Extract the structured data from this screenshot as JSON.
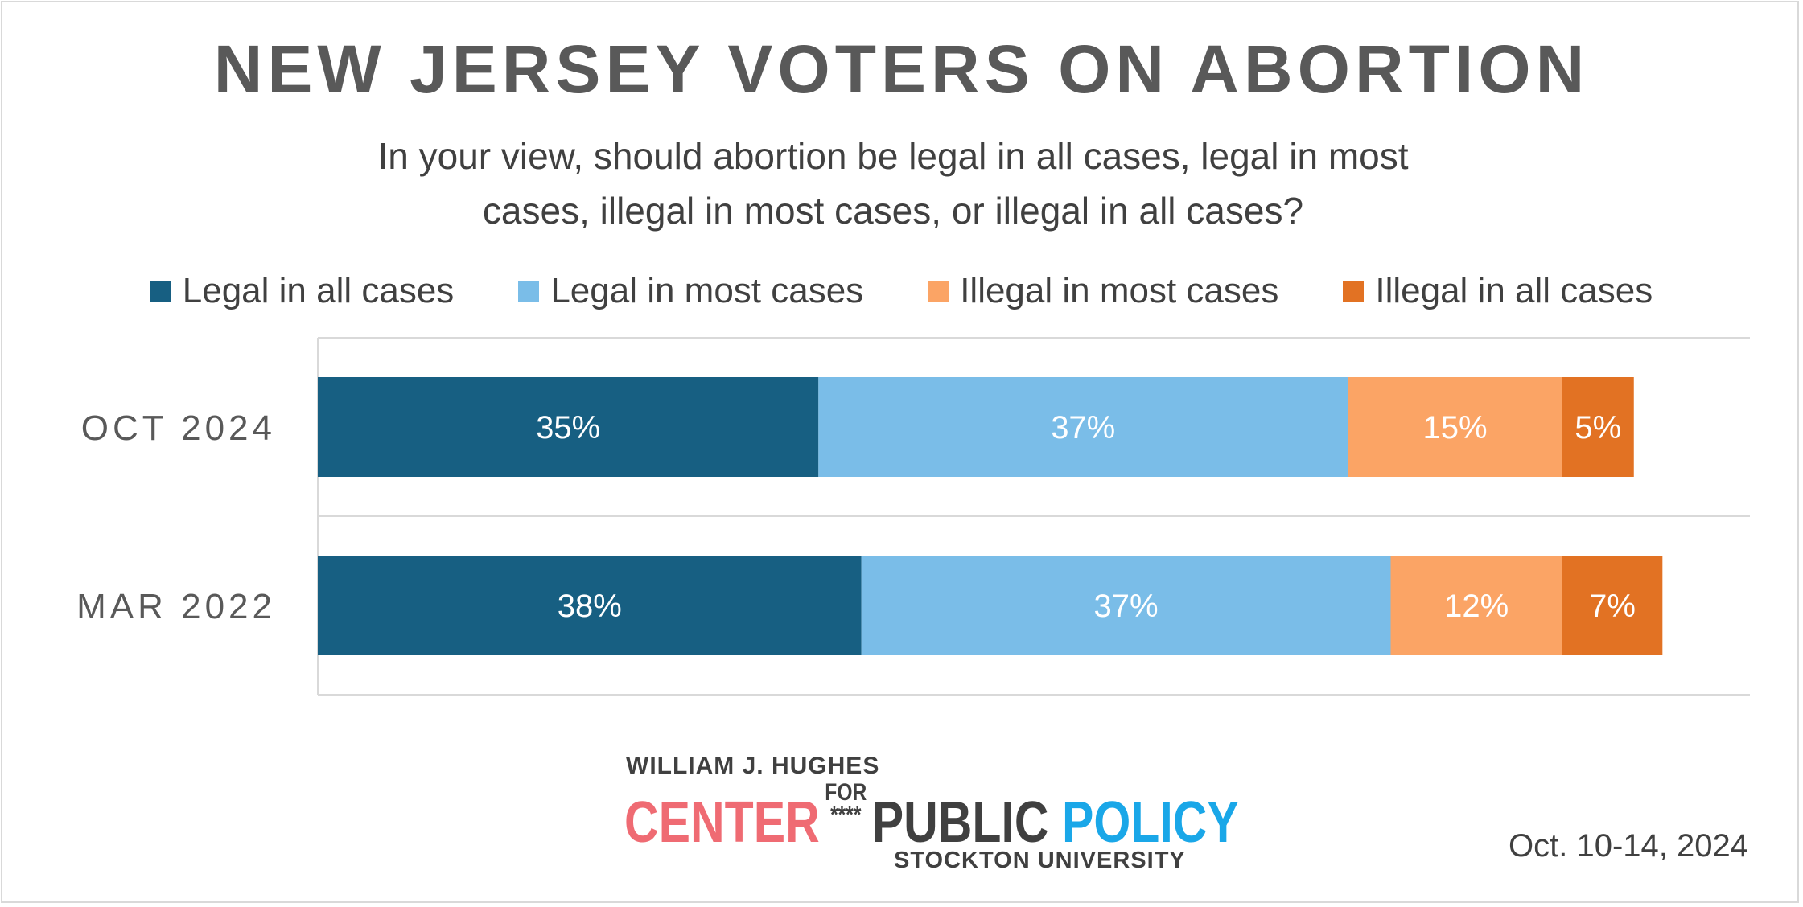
{
  "title": "NEW JERSEY VOTERS ON ABORTION",
  "subtitle_line1": "In your view, should abortion be legal in all cases, legal in most",
  "subtitle_line2": "cases, illegal in most cases, or illegal in all cases?",
  "legend": [
    {
      "label": "Legal in all cases",
      "color": "#175f82"
    },
    {
      "label": "Legal in most cases",
      "color": "#7abde8"
    },
    {
      "label": "Illegal in most cases",
      "color": "#fba465"
    },
    {
      "label": "Illegal in all cases",
      "color": "#e27223"
    }
  ],
  "chart_data": {
    "type": "bar",
    "orientation": "horizontal",
    "stacked": true,
    "categories": [
      "OCT 2024",
      "MAR 2022"
    ],
    "series": [
      {
        "name": "Legal in all cases",
        "values": [
          35,
          38
        ],
        "color": "#175f82"
      },
      {
        "name": "Legal in most cases",
        "values": [
          37,
          37
        ],
        "color": "#7abde8"
      },
      {
        "name": "Illegal in most cases",
        "values": [
          15,
          12
        ],
        "color": "#fba465"
      },
      {
        "name": "Illegal in all cases",
        "values": [
          5,
          7
        ],
        "color": "#e27223"
      }
    ],
    "data_labels": [
      [
        "35%",
        "37%",
        "15%",
        "5%"
      ],
      [
        "38%",
        "37%",
        "12%",
        "7%"
      ]
    ],
    "xlim": [
      0,
      100
    ],
    "grid": true,
    "legend_position": "top"
  },
  "logo": {
    "top": "WILLIAM J. HUGHES",
    "center": "CENTER",
    "for": "FOR",
    "stars": "****",
    "public": "PUBLIC",
    "policy": "POLICY",
    "bottom": "STOCKTON UNIVERSITY"
  },
  "date": "Oct. 10-14, 2024"
}
